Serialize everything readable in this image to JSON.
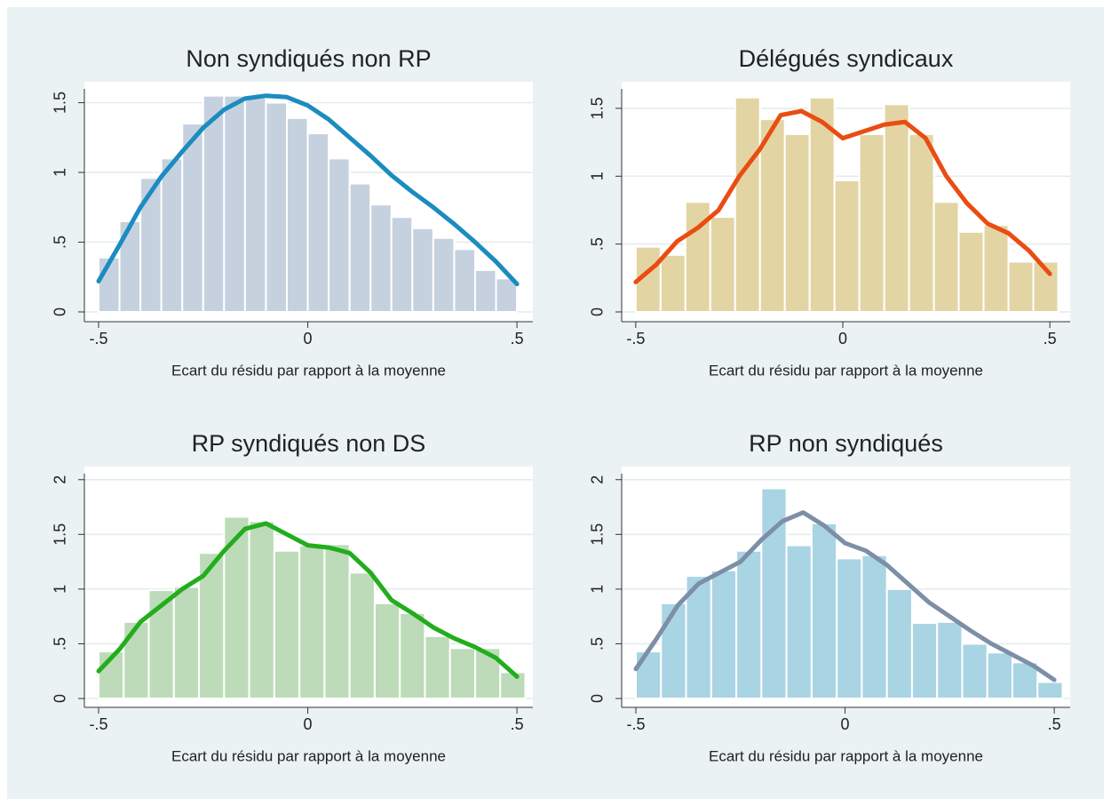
{
  "chart_data": [
    {
      "type": "histogram",
      "title": "Non syndiqués non RP",
      "xlabel": "Ecart du résidu par rapport à la moyenne",
      "color": "#c6d1df",
      "bins": [
        -0.5,
        -0.45,
        -0.4,
        -0.35,
        -0.3,
        -0.25,
        -0.2,
        -0.15,
        -0.1,
        -0.05,
        0,
        0.05,
        0.1,
        0.15,
        0.2,
        0.25,
        0.3,
        0.35,
        0.4,
        0.45,
        0.5
      ],
      "values": [
        0.39,
        0.65,
        0.96,
        1.1,
        1.35,
        1.55,
        1.55,
        1.55,
        1.5,
        1.39,
        1.28,
        1.1,
        0.92,
        0.77,
        0.68,
        0.6,
        0.53,
        0.45,
        0.3,
        0.24
      ],
      "line": {
        "color": "#1b8cc0",
        "x": [
          -0.5,
          -0.45,
          -0.4,
          -0.35,
          -0.3,
          -0.25,
          -0.2,
          -0.15,
          -0.1,
          -0.05,
          0,
          0.05,
          0.1,
          0.15,
          0.2,
          0.25,
          0.3,
          0.35,
          0.4,
          0.45,
          0.5
        ],
        "values": [
          0.22,
          0.48,
          0.75,
          0.97,
          1.15,
          1.32,
          1.45,
          1.53,
          1.55,
          1.54,
          1.48,
          1.38,
          1.25,
          1.12,
          0.98,
          0.86,
          0.75,
          0.63,
          0.5,
          0.36,
          0.2
        ]
      },
      "xlim": [
        -0.534,
        0.538
      ],
      "xticks": [
        {
          "value": -0.5,
          "label": "-.5"
        },
        0,
        {
          "value": 0.5,
          "label": ".5"
        }
      ],
      "ylim": [
        -0.07,
        1.65
      ],
      "yticks": [
        0,
        {
          "value": 0.5,
          "label": ".5"
        },
        1,
        1.5
      ],
      "grid": true
    },
    {
      "type": "histogram",
      "title": "Délégués syndicaux",
      "xlabel": "Ecart du résidu par rapport à la moyenne",
      "color": "#e2d5a3",
      "bins": [
        -0.5,
        -0.44,
        -0.38,
        -0.32,
        -0.26,
        -0.2,
        -0.14,
        -0.08,
        -0.02,
        0.04,
        0.1,
        0.16,
        0.22,
        0.28,
        0.34,
        0.4,
        0.46,
        0.52
      ],
      "values": [
        0.48,
        0.42,
        0.81,
        0.7,
        1.58,
        1.42,
        1.31,
        1.58,
        0.97,
        1.31,
        1.53,
        1.31,
        0.81,
        0.59,
        0.64,
        0.37,
        0.37
      ],
      "line": {
        "color": "#ea4c12",
        "x": [
          -0.5,
          -0.45,
          -0.4,
          -0.35,
          -0.3,
          -0.25,
          -0.2,
          -0.15,
          -0.1,
          -0.05,
          0,
          0.05,
          0.1,
          0.15,
          0.2,
          0.25,
          0.3,
          0.35,
          0.4,
          0.45,
          0.5
        ],
        "values": [
          0.22,
          0.35,
          0.52,
          0.62,
          0.75,
          1.0,
          1.2,
          1.45,
          1.48,
          1.4,
          1.28,
          1.33,
          1.38,
          1.4,
          1.28,
          1.0,
          0.8,
          0.65,
          0.58,
          0.45,
          0.28
        ]
      },
      "xlim": [
        -0.534,
        0.549
      ],
      "xticks": [
        {
          "value": -0.5,
          "label": "-.5"
        },
        0,
        {
          "value": 0.5,
          "label": ".5"
        }
      ],
      "ylim": [
        -0.072,
        1.696
      ],
      "yticks": [
        0,
        {
          "value": 0.5,
          "label": ".5"
        },
        1,
        1.5
      ],
      "grid": true
    },
    {
      "type": "histogram",
      "title": "RP syndiqués non DS",
      "xlabel": "Ecart du résidu par rapport à la moyenne",
      "color": "#bddbb8",
      "bins": [
        -0.5,
        -0.44,
        -0.38,
        -0.32,
        -0.26,
        -0.2,
        -0.14,
        -0.08,
        -0.02,
        0.04,
        0.1,
        0.16,
        0.22,
        0.28,
        0.34,
        0.4,
        0.46,
        0.52
      ],
      "values": [
        0.43,
        0.7,
        0.99,
        1.02,
        1.33,
        1.66,
        1.62,
        1.35,
        1.4,
        1.41,
        1.15,
        0.87,
        0.78,
        0.57,
        0.46,
        0.46,
        0.24
      ],
      "line": {
        "color": "#22ad1c",
        "x": [
          -0.5,
          -0.45,
          -0.4,
          -0.35,
          -0.3,
          -0.25,
          -0.2,
          -0.15,
          -0.1,
          -0.05,
          0,
          0.05,
          0.1,
          0.15,
          0.2,
          0.25,
          0.3,
          0.35,
          0.4,
          0.45,
          0.5
        ],
        "values": [
          0.25,
          0.45,
          0.7,
          0.85,
          1.0,
          1.12,
          1.35,
          1.55,
          1.6,
          1.5,
          1.4,
          1.38,
          1.33,
          1.15,
          0.9,
          0.78,
          0.65,
          0.55,
          0.47,
          0.37,
          0.2
        ]
      },
      "xlim": [
        -0.534,
        0.538
      ],
      "xticks": [
        {
          "value": -0.5,
          "label": "-.5"
        },
        0,
        {
          "value": 0.5,
          "label": ".5"
        }
      ],
      "ylim": [
        -0.081,
        2.12
      ],
      "yticks": [
        0,
        {
          "value": 0.5,
          "label": ".5"
        },
        1,
        1.5,
        2
      ],
      "grid": true
    },
    {
      "type": "histogram",
      "title": "RP non syndiqués",
      "xlabel": "Ecart du résidu par rapport à la moyenne",
      "color": "#a9d4e4",
      "bins": [
        -0.5,
        -0.44,
        -0.38,
        -0.32,
        -0.26,
        -0.2,
        -0.14,
        -0.08,
        -0.02,
        0.04,
        0.1,
        0.16,
        0.22,
        0.28,
        0.34,
        0.4,
        0.46,
        0.52
      ],
      "values": [
        0.43,
        0.87,
        1.12,
        1.17,
        1.35,
        1.92,
        1.4,
        1.6,
        1.28,
        1.31,
        1.0,
        0.69,
        0.7,
        0.5,
        0.42,
        0.33,
        0.15
      ],
      "line": {
        "color": "#7d8fa7",
        "x": [
          -0.5,
          -0.45,
          -0.4,
          -0.35,
          -0.3,
          -0.25,
          -0.2,
          -0.15,
          -0.1,
          -0.05,
          0,
          0.05,
          0.1,
          0.15,
          0.2,
          0.25,
          0.3,
          0.35,
          0.4,
          0.45,
          0.5
        ],
        "values": [
          0.27,
          0.55,
          0.85,
          1.05,
          1.15,
          1.25,
          1.45,
          1.62,
          1.7,
          1.58,
          1.42,
          1.35,
          1.22,
          1.05,
          0.88,
          0.75,
          0.62,
          0.5,
          0.4,
          0.3,
          0.17
        ]
      },
      "xlim": [
        -0.534,
        0.538
      ],
      "xticks": [
        {
          "value": -0.5,
          "label": "-.5"
        },
        0,
        {
          "value": 0.5,
          "label": ".5"
        }
      ],
      "ylim": [
        -0.081,
        2.12
      ],
      "yticks": [
        0,
        {
          "value": 0.5,
          "label": ".5"
        },
        1,
        1.5,
        2
      ],
      "grid": true
    }
  ]
}
